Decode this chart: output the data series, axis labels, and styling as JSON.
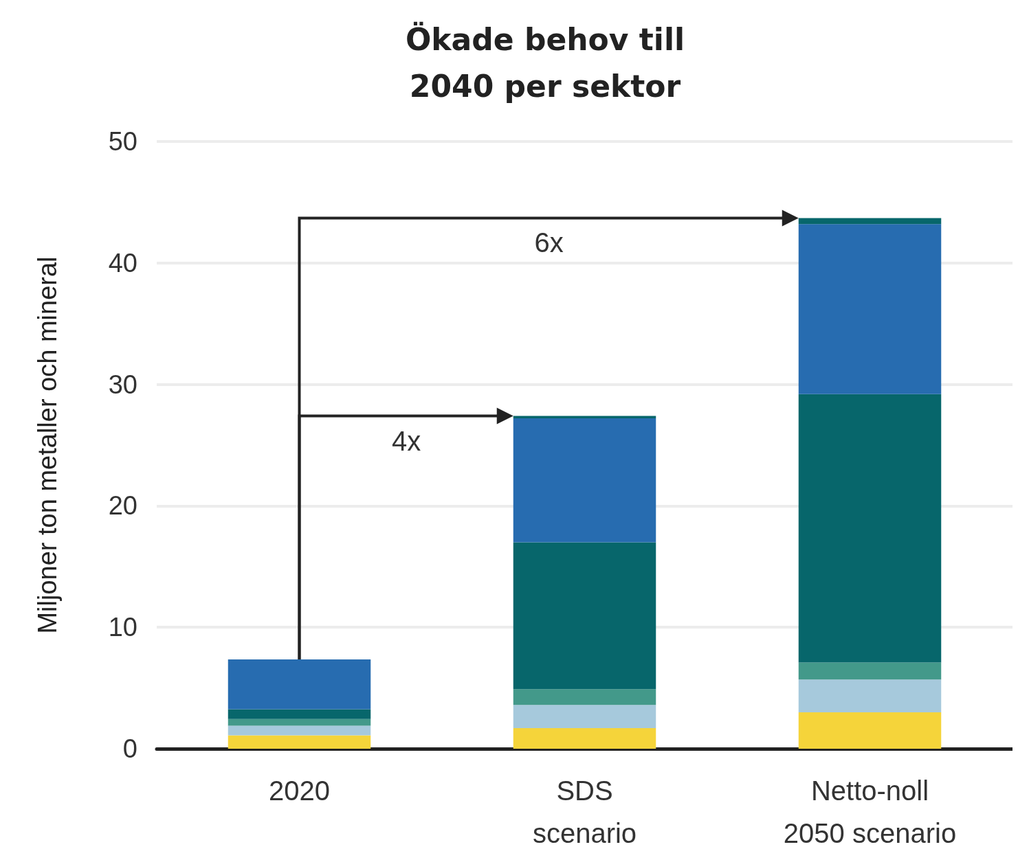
{
  "chart_data": {
    "type": "bar",
    "title": "Ökade behov till\n2040 per sektor",
    "ylabel": "Miljoner ton metaller och mineral",
    "categories": [
      "2020",
      "SDS\nscenario",
      "Netto-noll\n2050 scenario"
    ],
    "stacked": true,
    "series": [
      {
        "color": "#f5d43a",
        "values": [
          1.1,
          1.7,
          3.0
        ]
      },
      {
        "color": "#a6c9dc",
        "values": [
          0.8,
          1.9,
          2.7
        ]
      },
      {
        "color": "#43998a",
        "values": [
          0.55,
          1.3,
          1.4
        ]
      },
      {
        "color": "#07666b",
        "values": [
          0.8,
          12.1,
          22.1
        ]
      },
      {
        "color": "#276cb0",
        "values": [
          4.1,
          10.2,
          14.0
        ]
      },
      {
        "color": "#07666b",
        "values": [
          0,
          0.2,
          0.5
        ]
      }
    ],
    "ylim": [
      0,
      50
    ],
    "yticks": [
      0,
      10,
      20,
      30,
      40,
      50
    ],
    "grid": "y",
    "annotations": [
      "6x",
      "4x"
    ]
  }
}
